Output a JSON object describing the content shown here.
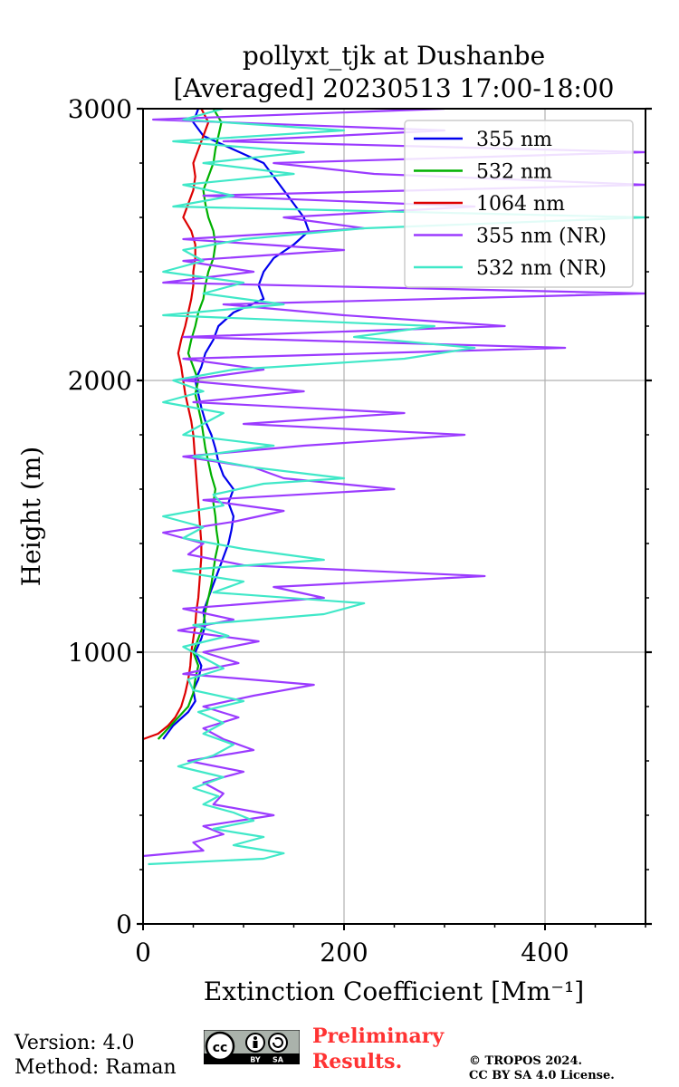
{
  "chart_data": {
    "type": "line",
    "title": [
      "pollyxt_tjk at Dushanbe",
      "[Averaged] 20230513 17:00-18:00"
    ],
    "xlabel": "Extinction Coefficient [Mm⁻¹]",
    "ylabel": "Height (m)",
    "xlim": [
      0,
      500
    ],
    "ylim": [
      0,
      3000
    ],
    "xticks": [
      0,
      200,
      400
    ],
    "yticks": [
      0,
      1000,
      2000,
      3000
    ],
    "grid": true,
    "legend": "top-right",
    "series": [
      {
        "name": "355 nm",
        "color": "#0000ee",
        "h": [
          680,
          730,
          780,
          820,
          860,
          900,
          950,
          1000,
          1050,
          1100,
          1150,
          1200,
          1250,
          1300,
          1350,
          1400,
          1450,
          1500,
          1550,
          1600,
          1650,
          1700,
          1750,
          1800,
          1850,
          1900,
          1950,
          2000,
          2050,
          2100,
          2150,
          2200,
          2250,
          2300,
          2350,
          2400,
          2450,
          2500,
          2550,
          2600,
          2650,
          2700,
          2750,
          2800,
          2850,
          2900,
          2950,
          3000
        ],
        "x": [
          20,
          30,
          45,
          52,
          50,
          55,
          58,
          52,
          58,
          62,
          60,
          65,
          70,
          75,
          80,
          85,
          88,
          90,
          85,
          90,
          80,
          75,
          72,
          68,
          62,
          58,
          55,
          52,
          58,
          62,
          70,
          75,
          90,
          120,
          115,
          120,
          130,
          150,
          165,
          160,
          150,
          140,
          130,
          120,
          90,
          60,
          50,
          55
        ]
      },
      {
        "name": "532 nm",
        "color": "#00b000",
        "h": [
          680,
          720,
          760,
          800,
          850,
          900,
          950,
          1000,
          1050,
          1100,
          1150,
          1200,
          1250,
          1300,
          1350,
          1400,
          1450,
          1500,
          1550,
          1600,
          1650,
          1700,
          1750,
          1800,
          1850,
          1900,
          1950,
          2000,
          2050,
          2100,
          2150,
          2200,
          2250,
          2300,
          2350,
          2400,
          2450,
          2500,
          2550,
          2600,
          2650,
          2700,
          2750,
          2800,
          2850,
          2900,
          2950,
          3000
        ],
        "x": [
          15,
          25,
          35,
          45,
          50,
          52,
          55,
          50,
          55,
          60,
          62,
          65,
          68,
          70,
          72,
          75,
          73,
          72,
          70,
          72,
          68,
          65,
          62,
          60,
          58,
          55,
          52,
          55,
          50,
          45,
          48,
          52,
          55,
          60,
          62,
          65,
          70,
          72,
          70,
          65,
          62,
          60,
          65,
          70,
          72,
          75,
          78,
          70
        ]
      },
      {
        "name": "1064 nm",
        "color": "#dd0000",
        "h": [
          680,
          700,
          730,
          760,
          800,
          850,
          900,
          950,
          1000,
          1050,
          1100,
          1150,
          1200,
          1250,
          1300,
          1350,
          1400,
          1450,
          1500,
          1550,
          1600,
          1650,
          1700,
          1750,
          1800,
          1850,
          1900,
          1950,
          2000,
          2050,
          2100,
          2150,
          2200,
          2250,
          2300,
          2350,
          2400,
          2450,
          2500,
          2550,
          2600,
          2650,
          2700,
          2750,
          2800,
          2850,
          2900,
          2950,
          3000
        ],
        "x": [
          0,
          15,
          25,
          32,
          38,
          42,
          45,
          47,
          48,
          50,
          52,
          53,
          55,
          56,
          57,
          58,
          58,
          57,
          56,
          55,
          54,
          53,
          52,
          51,
          50,
          48,
          45,
          42,
          40,
          38,
          35,
          38,
          42,
          45,
          48,
          50,
          50,
          52,
          52,
          48,
          40,
          45,
          50,
          52,
          50,
          55,
          60,
          65,
          58
        ]
      },
      {
        "name": "355 nm (NR)",
        "color": "#9b3bff",
        "h": [
          250,
          270,
          300,
          330,
          360,
          400,
          440,
          480,
          520,
          560,
          600,
          640,
          680,
          720,
          760,
          800,
          840,
          880,
          920,
          960,
          1000,
          1040,
          1080,
          1120,
          1160,
          1200,
          1240,
          1280,
          1320,
          1360,
          1400,
          1440,
          1480,
          1520,
          1560,
          1600,
          1640,
          1680,
          1720,
          1760,
          1800,
          1840,
          1880,
          1920,
          1960,
          2000,
          2040,
          2080,
          2120,
          2160,
          2200,
          2240,
          2280,
          2320,
          2360,
          2400,
          2440,
          2480,
          2520,
          2560,
          2600,
          2640,
          2680,
          2720,
          2760,
          2800,
          2840,
          2880,
          2920,
          2960,
          3000
        ],
        "x": [
          0,
          60,
          50,
          80,
          60,
          130,
          70,
          80,
          60,
          100,
          45,
          110,
          80,
          60,
          95,
          60,
          110,
          170,
          40,
          95,
          60,
          115,
          35,
          90,
          40,
          180,
          130,
          340,
          100,
          45,
          60,
          20,
          90,
          140,
          60,
          250,
          140,
          110,
          40,
          160,
          320,
          100,
          260,
          50,
          160,
          40,
          120,
          40,
          420,
          40,
          360,
          200,
          80,
          500,
          20,
          110,
          40,
          200,
          40,
          220,
          140,
          330,
          60,
          500,
          230,
          130,
          500,
          80,
          300,
          10,
          300
        ]
      },
      {
        "name": "532 nm (NR)",
        "color": "#40e8c8",
        "h": [
          220,
          240,
          260,
          290,
          320,
          350,
          380,
          410,
          440,
          470,
          500,
          540,
          580,
          620,
          660,
          700,
          740,
          780,
          820,
          860,
          900,
          940,
          980,
          1020,
          1060,
          1100,
          1140,
          1180,
          1220,
          1260,
          1300,
          1340,
          1380,
          1420,
          1460,
          1500,
          1540,
          1580,
          1620,
          1640,
          1680,
          1720,
          1760,
          1800,
          1840,
          1880,
          1920,
          1960,
          2000,
          2040,
          2080,
          2120,
          2160,
          2200,
          2240,
          2280,
          2320,
          2360,
          2400,
          2440,
          2480,
          2520,
          2560,
          2600,
          2640,
          2680,
          2720,
          2760,
          2800,
          2840,
          2880,
          2920,
          2960,
          3000
        ],
        "x": [
          5,
          120,
          140,
          90,
          120,
          70,
          110,
          90,
          60,
          75,
          50,
          80,
          35,
          70,
          90,
          60,
          80,
          55,
          100,
          50,
          45,
          80,
          60,
          40,
          85,
          50,
          180,
          220,
          70,
          100,
          30,
          180,
          100,
          40,
          60,
          20,
          80,
          70,
          120,
          200,
          110,
          50,
          130,
          40,
          60,
          80,
          20,
          60,
          30,
          90,
          260,
          330,
          210,
          290,
          20,
          140,
          60,
          100,
          20,
          60,
          40,
          100,
          220,
          500,
          30,
          90,
          40,
          150,
          60,
          160,
          30,
          200,
          40,
          80
        ]
      }
    ]
  },
  "footer": {
    "version": "Version: 4.0",
    "method": "Method: Raman",
    "prelim_line1": "Preliminary",
    "prelim_line2": "Results.",
    "copyright_line1": "© TROPOS 2024.",
    "copyright_line2": "CC BY SA 4.0 License.",
    "cc_labels": [
      "cc",
      "BY",
      "SA"
    ]
  }
}
